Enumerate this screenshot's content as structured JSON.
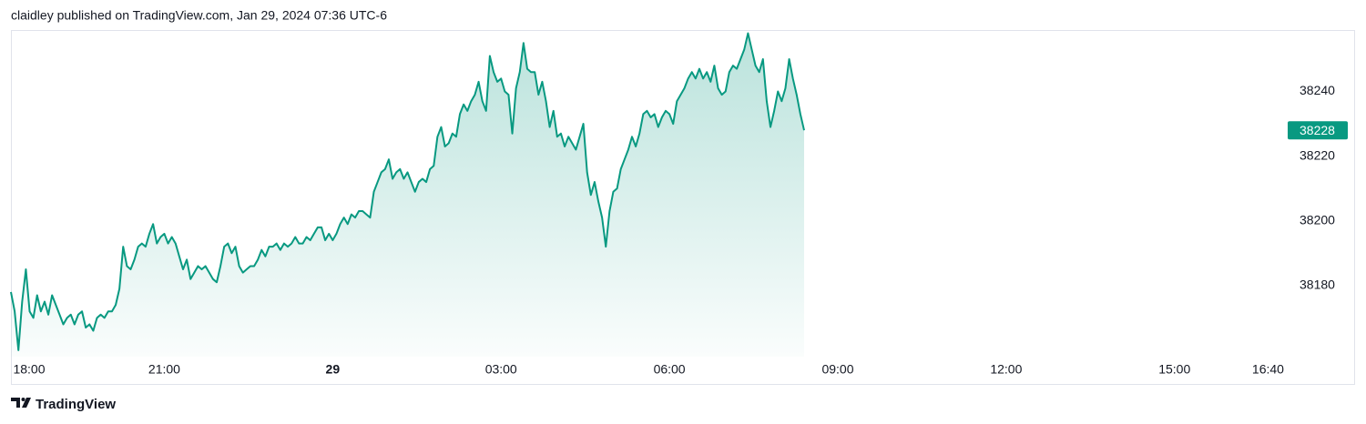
{
  "header": {
    "text": "claidley published on TradingView.com, Jan 29, 2024 07:36 UTC-6"
  },
  "footer": {
    "brand": "TradingView"
  },
  "chart_data": {
    "type": "area",
    "color": "#089981",
    "x": [
      "18:16",
      "18:20",
      "18:24",
      "18:28",
      "18:32",
      "18:36",
      "18:40",
      "18:44",
      "18:48",
      "18:52",
      "18:56",
      "19:00",
      "19:04",
      "19:08",
      "19:12",
      "19:16",
      "19:20",
      "19:24",
      "19:28",
      "19:32",
      "19:36",
      "19:40",
      "19:44",
      "19:48",
      "19:52",
      "19:56",
      "20:00",
      "20:04",
      "20:08",
      "20:12",
      "20:16",
      "20:20",
      "20:24",
      "20:28",
      "20:32",
      "20:36",
      "20:40",
      "20:44",
      "20:48",
      "20:52",
      "20:56",
      "21:00",
      "21:04",
      "21:08",
      "21:12",
      "21:16",
      "21:20",
      "21:24",
      "21:28",
      "21:32",
      "21:36",
      "21:40",
      "21:44",
      "21:48",
      "21:52",
      "21:56",
      "22:00",
      "22:04",
      "22:08",
      "22:12",
      "22:16",
      "22:20",
      "22:24",
      "22:28",
      "22:32",
      "22:36",
      "22:40",
      "22:44",
      "22:48",
      "22:52",
      "22:56",
      "23:00",
      "23:04",
      "23:08",
      "23:12",
      "23:16",
      "23:20",
      "23:24",
      "23:28",
      "23:32",
      "23:36",
      "23:40",
      "23:44",
      "23:48",
      "23:52",
      "23:56",
      "00:00",
      "00:04",
      "00:08",
      "00:12",
      "00:16",
      "00:20",
      "00:24",
      "00:28",
      "00:32",
      "00:36",
      "00:40",
      "00:44",
      "00:48",
      "00:52",
      "00:56",
      "01:00",
      "01:04",
      "01:08",
      "01:12",
      "01:16",
      "01:20",
      "01:24",
      "01:28",
      "01:32",
      "01:36",
      "01:40",
      "01:44",
      "01:48",
      "01:52",
      "01:56",
      "02:00",
      "02:04",
      "02:08",
      "02:12",
      "02:16",
      "02:20",
      "02:24",
      "02:28",
      "02:32",
      "02:36",
      "02:40",
      "02:44",
      "02:48",
      "02:52",
      "02:56",
      "03:00",
      "03:04",
      "03:08",
      "03:12",
      "03:16",
      "03:20",
      "03:24",
      "03:28",
      "03:32",
      "03:36",
      "03:40",
      "03:44",
      "03:48",
      "03:52",
      "03:56",
      "04:00",
      "04:04",
      "04:08",
      "04:12",
      "04:16",
      "04:20",
      "04:24",
      "04:28",
      "04:32",
      "04:36",
      "04:40",
      "04:44",
      "04:48",
      "04:52",
      "04:56",
      "05:00",
      "05:04",
      "05:08",
      "05:12",
      "05:16",
      "05:20",
      "05:24",
      "05:28",
      "05:32",
      "05:36",
      "05:40",
      "05:44",
      "05:48",
      "05:52",
      "05:56",
      "06:00",
      "06:04",
      "06:08",
      "06:12",
      "06:16",
      "06:20",
      "06:24",
      "06:28",
      "06:32",
      "06:36",
      "06:40",
      "06:44",
      "06:48",
      "06:52",
      "06:56",
      "07:00",
      "07:04",
      "07:08",
      "07:12",
      "07:16",
      "07:20",
      "07:24",
      "07:28",
      "07:32",
      "07:36",
      "07:40",
      "07:44",
      "07:48",
      "07:52",
      "07:56",
      "08:00",
      "08:04",
      "08:08",
      "08:12",
      "08:16",
      "08:20",
      "08:24"
    ],
    "values": [
      38178,
      38172,
      38160,
      38175,
      38185,
      38172,
      38170,
      38177,
      38172,
      38175,
      38171,
      38177,
      38174,
      38171,
      38168,
      38170,
      38171,
      38168,
      38171,
      38172,
      38167,
      38168,
      38166,
      38170,
      38171,
      38170,
      38172,
      38172,
      38174,
      38179,
      38192,
      38186,
      38185,
      38188,
      38192,
      38193,
      38192,
      38196,
      38199,
      38193,
      38195,
      38196,
      38193,
      38195,
      38193,
      38189,
      38185,
      38188,
      38182,
      38184,
      38186,
      38185,
      38186,
      38184,
      38182,
      38181,
      38186,
      38192,
      38193,
      38190,
      38192,
      38186,
      38184,
      38185,
      38186,
      38186,
      38188,
      38191,
      38189,
      38192,
      38192,
      38193,
      38191,
      38193,
      38192,
      38193,
      38195,
      38193,
      38193,
      38195,
      38194,
      38196,
      38198,
      38198,
      38194,
      38196,
      38194,
      38196,
      38199,
      38201,
      38199,
      38202,
      38201,
      38203,
      38203,
      38202,
      38201,
      38209,
      38212,
      38215,
      38216,
      38219,
      38213,
      38215,
      38216,
      38213,
      38215,
      38212,
      38209,
      38212,
      38213,
      38212,
      38216,
      38217,
      38226,
      38229,
      38223,
      38224,
      38227,
      38226,
      38233,
      38236,
      38234,
      38237,
      38239,
      38243,
      38237,
      38234,
      38251,
      38246,
      38243,
      38244,
      38240,
      38239,
      38227,
      38241,
      38246,
      38255,
      38247,
      38246,
      38246,
      38239,
      38243,
      38237,
      38229,
      38234,
      38226,
      38227,
      38223,
      38226,
      38224,
      38222,
      38226,
      38230,
      38215,
      38208,
      38212,
      38206,
      38201,
      38192,
      38203,
      38209,
      38210,
      38216,
      38219,
      38222,
      38226,
      38223,
      38227,
      38233,
      38234,
      38232,
      38233,
      38229,
      38232,
      38234,
      38233,
      38230,
      38237,
      38239,
      38241,
      38244,
      38246,
      38244,
      38247,
      38244,
      38246,
      38243,
      38248,
      38241,
      38239,
      38240,
      38246,
      38248,
      38247,
      38250,
      38253,
      38258,
      38253,
      38248,
      38246,
      38250,
      38237,
      38229,
      38234,
      38240,
      38237,
      38241,
      38250,
      38244,
      38239,
      38233,
      38228
    ],
    "xlim": [
      "18:16",
      "17:00"
    ],
    "xticks": [
      "18:00",
      "21:00",
      {
        "value": "00:00",
        "label": "29"
      },
      "03:00",
      "06:00",
      "09:00",
      "12:00",
      "15:00",
      "16:40"
    ],
    "ylim": [
      38158,
      38259
    ],
    "yticks": [
      38180,
      38200,
      38220,
      38240
    ],
    "grid": false
  }
}
